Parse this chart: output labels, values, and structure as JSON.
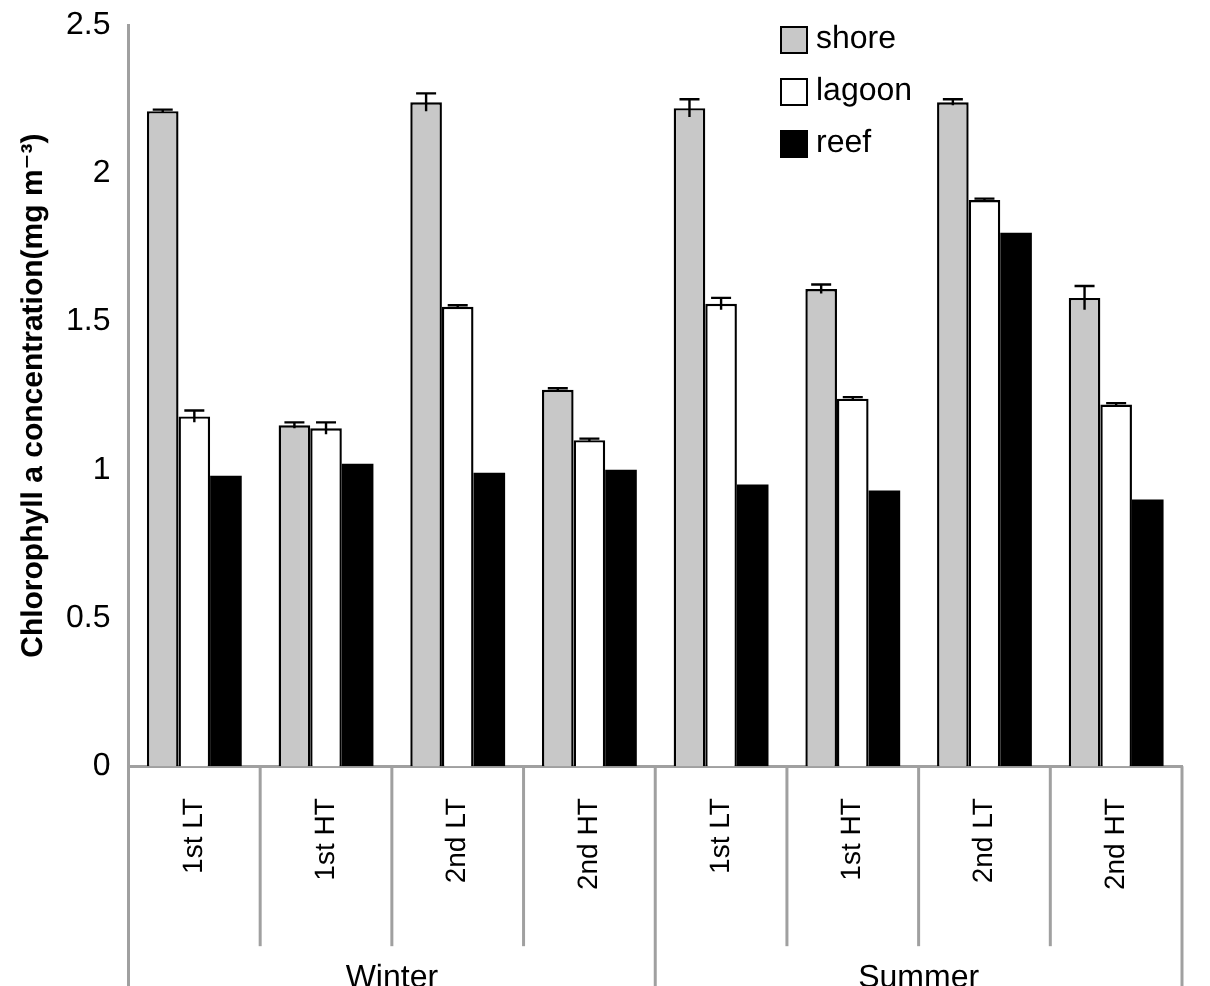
{
  "chart_data": {
    "type": "bar",
    "ylabel": "Chlorophyll a concentration(mg m⁻³)",
    "categories": [
      "1st LT",
      "1st HT",
      "2nd LT",
      "2nd HT",
      "1st LT",
      "1st HT",
      "2nd LT",
      "2nd HT"
    ],
    "annotations": [
      "Winter",
      "Summer"
    ],
    "series": [
      {
        "name": "shore",
        "color": "#c8c8c8",
        "values": [
          2.21,
          1.15,
          2.24,
          1.27,
          2.22,
          1.61,
          2.24,
          1.58
        ],
        "errors": [
          0.005,
          0.01,
          0.03,
          0.005,
          0.03,
          0.015,
          0.01,
          0.04
        ]
      },
      {
        "name": "lagoon",
        "color": "#ffffff",
        "values": [
          1.18,
          1.14,
          1.55,
          1.1,
          1.56,
          1.24,
          1.91,
          1.22
        ],
        "errors": [
          0.02,
          0.02,
          0.005,
          0.005,
          0.02,
          0.005,
          0.005,
          0.005
        ]
      },
      {
        "name": "reef",
        "color": "#000000",
        "values": [
          0.98,
          1.02,
          0.99,
          1.0,
          0.95,
          0.93,
          1.8,
          0.9
        ]
      }
    ],
    "ylim": [
      0,
      2.5
    ],
    "yticks": [
      0,
      0.5,
      1,
      1.5,
      2,
      2.5
    ],
    "grid": false,
    "legend": "top right"
  }
}
